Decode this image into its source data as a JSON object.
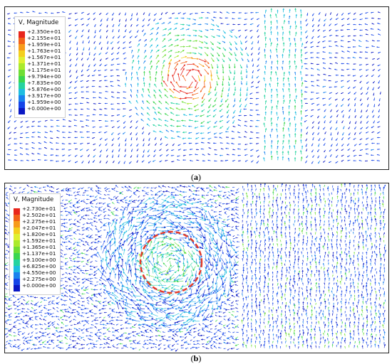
{
  "figure_a": {
    "caption_letter": "a",
    "legend": {
      "title": "V, Magnitude",
      "labels": [
        "+2.350e+01",
        "+2.155e+01",
        "+1.959e+01",
        "+1.763e+01",
        "+1.567e+01",
        "+1.371e+01",
        "+1.175e+01",
        "+9.794e+00",
        "+7.835e+00",
        "+5.876e+00",
        "+3.917e+00",
        "+1.959e+00",
        "+0.000e+00"
      ],
      "colors": [
        "#e8261c",
        "#f2621a",
        "#f79b1c",
        "#f3cf1e",
        "#dff032",
        "#aaea2c",
        "#6fde35",
        "#3bd64f",
        "#26d3a0",
        "#1fbde0",
        "#1a82ee",
        "#1545e8",
        "#0a18c4"
      ]
    }
  },
  "figure_b": {
    "caption_letter": "b",
    "legend": {
      "title": "V, Magnitude",
      "labels": [
        "+2.730e+01",
        "+2.502e+01",
        "+2.275e+01",
        "+2.047e+01",
        "+1.820e+01",
        "+1.592e+01",
        "+1.365e+01",
        "+1.137e+01",
        "+9.100e+00",
        "+6.825e+00",
        "+4.550e+00",
        "+2.275e+00",
        "+0.000e+00"
      ],
      "colors": [
        "#e8261c",
        "#f2621a",
        "#f79b1c",
        "#f3cf1e",
        "#dff032",
        "#aaea2c",
        "#6fde35",
        "#3bd64f",
        "#26d3a0",
        "#1fbde0",
        "#1a82ee",
        "#1545e8",
        "#0a18c4"
      ]
    },
    "marker_color": "#e23a2a"
  }
}
